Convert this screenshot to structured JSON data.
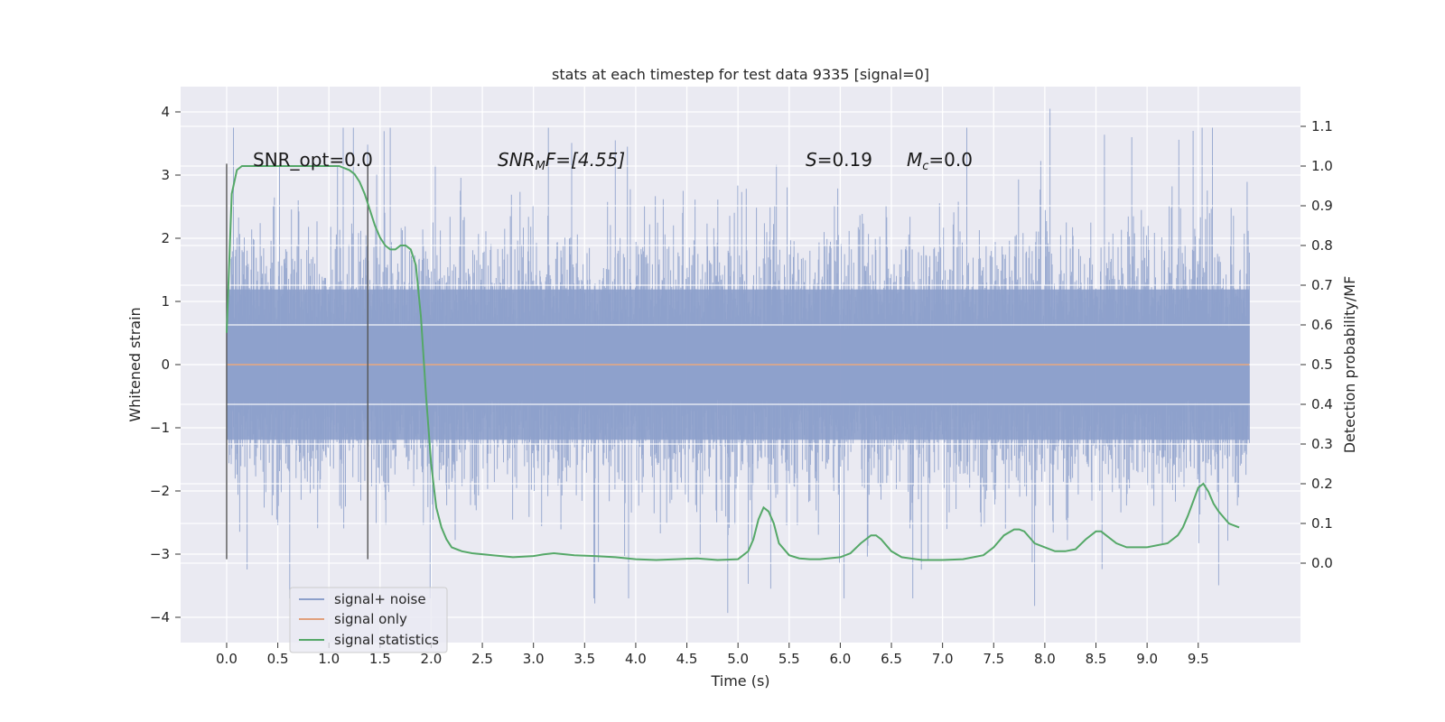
{
  "chart_data": {
    "type": "line",
    "title": "stats at each timestep for test data 9335 [signal=0]",
    "xlabel": "Time (s)",
    "ylabel": "Whitened strain",
    "y2label": "Detection probability/MF",
    "xlim": [
      -0.45,
      10.5
    ],
    "ylim": [
      -4.4,
      4.4
    ],
    "y2lim": [
      -0.2,
      1.2
    ],
    "x_ticks": [
      "0.0",
      "0.5",
      "1.0",
      "1.5",
      "2.0",
      "2.5",
      "3.0",
      "3.5",
      "4.0",
      "4.5",
      "5.0",
      "5.5",
      "6.0",
      "6.5",
      "7.0",
      "7.5",
      "8.0",
      "8.5",
      "9.0",
      "9.5"
    ],
    "y_ticks": [
      "4",
      "3",
      "2",
      "1",
      "0",
      "−1",
      "−2",
      "−3",
      "−4"
    ],
    "y2_ticks": [
      "1.1",
      "1.0",
      "0.9",
      "0.8",
      "0.7",
      "0.6",
      "0.5",
      "0.4",
      "0.3",
      "0.2",
      "0.1",
      "0.0"
    ],
    "grid": true,
    "legend_position": "lower-left",
    "colors": {
      "noise": "#8da0cb",
      "signal_only": "#e1a07c",
      "statistics": "#55a868",
      "marker": "#555555",
      "background": "#eaeaf2"
    },
    "annotations": {
      "snr_opt": "SNR_opt=0.0",
      "snr_mf_prefix": "SNR",
      "snr_mf_sub": "M",
      "snr_mf_suffix": "F=[4.55]",
      "s_prefix": "S",
      "s_value": "=0.19",
      "mc_prefix": "M",
      "mc_sub": "c",
      "mc_value": "=0.0"
    },
    "markers_x": [
      0.0,
      1.38
    ],
    "marker_y_range": [
      -3.08,
      3.18
    ],
    "noise_envelope": {
      "x_range": [
        0.0,
        10.0
      ],
      "typical_abs": 1.4,
      "max": 4.05,
      "min": -3.93
    },
    "series": [
      {
        "name": "signal+ noise",
        "role": "noise"
      },
      {
        "name": "signal only",
        "role": "signal_only",
        "x": [
          0.0,
          10.0
        ],
        "y": [
          0.0,
          0.0
        ]
      },
      {
        "name": "signal statistics",
        "role": "statistics",
        "axis": "right",
        "x": [
          0.0,
          0.05,
          0.1,
          0.15,
          0.2,
          0.3,
          0.4,
          0.5,
          0.6,
          0.7,
          0.8,
          0.9,
          1.0,
          1.1,
          1.2,
          1.25,
          1.3,
          1.35,
          1.4,
          1.45,
          1.5,
          1.55,
          1.6,
          1.65,
          1.7,
          1.75,
          1.8,
          1.85,
          1.9,
          1.95,
          2.0,
          2.05,
          2.1,
          2.15,
          2.2,
          2.3,
          2.4,
          2.6,
          2.8,
          3.0,
          3.1,
          3.2,
          3.4,
          3.6,
          3.8,
          4.0,
          4.2,
          4.4,
          4.6,
          4.8,
          5.0,
          5.1,
          5.15,
          5.2,
          5.25,
          5.3,
          5.35,
          5.4,
          5.5,
          5.6,
          5.7,
          5.8,
          6.0,
          6.1,
          6.2,
          6.3,
          6.35,
          6.4,
          6.5,
          6.6,
          6.8,
          7.0,
          7.2,
          7.4,
          7.5,
          7.6,
          7.7,
          7.75,
          7.8,
          7.9,
          8.0,
          8.1,
          8.2,
          8.3,
          8.4,
          8.5,
          8.55,
          8.6,
          8.7,
          8.8,
          8.9,
          9.0,
          9.2,
          9.3,
          9.35,
          9.4,
          9.5,
          9.55,
          9.6,
          9.65,
          9.7,
          9.8,
          9.9
        ],
        "y": [
          0.58,
          0.93,
          0.99,
          1.0,
          1.0,
          1.0,
          1.0,
          1.0,
          1.0,
          1.0,
          1.0,
          1.0,
          1.0,
          1.0,
          0.99,
          0.98,
          0.96,
          0.93,
          0.89,
          0.85,
          0.82,
          0.8,
          0.79,
          0.79,
          0.8,
          0.8,
          0.79,
          0.75,
          0.62,
          0.42,
          0.25,
          0.14,
          0.09,
          0.06,
          0.04,
          0.03,
          0.025,
          0.02,
          0.015,
          0.018,
          0.022,
          0.025,
          0.02,
          0.018,
          0.015,
          0.01,
          0.008,
          0.01,
          0.012,
          0.008,
          0.01,
          0.03,
          0.06,
          0.11,
          0.14,
          0.13,
          0.1,
          0.05,
          0.02,
          0.012,
          0.01,
          0.01,
          0.015,
          0.025,
          0.05,
          0.07,
          0.07,
          0.06,
          0.03,
          0.015,
          0.008,
          0.008,
          0.01,
          0.02,
          0.04,
          0.07,
          0.085,
          0.085,
          0.08,
          0.05,
          0.04,
          0.03,
          0.03,
          0.035,
          0.06,
          0.08,
          0.08,
          0.07,
          0.05,
          0.04,
          0.04,
          0.04,
          0.05,
          0.07,
          0.09,
          0.12,
          0.19,
          0.2,
          0.18,
          0.15,
          0.13,
          0.1,
          0.09
        ]
      }
    ]
  }
}
